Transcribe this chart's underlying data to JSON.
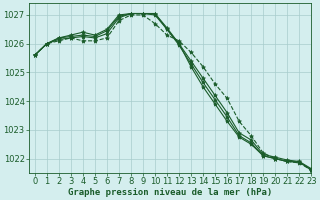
{
  "title": "Graphe pression niveau de la mer (hPa)",
  "background_color": "#d4eeee",
  "grid_color": "#a8cccc",
  "line_color": "#1a5c2a",
  "xlim": [
    -0.5,
    23
  ],
  "ylim": [
    1021.5,
    1027.4
  ],
  "yticks": [
    1022,
    1023,
    1024,
    1025,
    1026,
    1027
  ],
  "xticks": [
    0,
    1,
    2,
    3,
    4,
    5,
    6,
    7,
    8,
    9,
    10,
    11,
    12,
    13,
    14,
    15,
    16,
    17,
    18,
    19,
    20,
    21,
    22,
    23
  ],
  "series": [
    {
      "values": [
        1025.6,
        1026.0,
        1026.1,
        1026.2,
        1026.1,
        1026.1,
        1026.2,
        1026.8,
        1027.0,
        1027.0,
        1026.7,
        1026.3,
        1026.1,
        1025.7,
        1025.2,
        1024.6,
        1024.1,
        1023.3,
        1022.8,
        1022.2,
        1022.0,
        1021.9,
        1021.85,
        1021.6
      ],
      "linestyle": "--",
      "linewidth": 0.8,
      "marker": "*",
      "markersize": 3.0
    },
    {
      "values": [
        1025.6,
        1026.0,
        1026.15,
        1026.2,
        1026.25,
        1026.2,
        1026.35,
        1026.9,
        1027.05,
        1027.05,
        1027.05,
        1026.55,
        1026.0,
        1025.4,
        1024.8,
        1024.2,
        1023.6,
        1022.9,
        1022.65,
        1022.15,
        1022.05,
        1021.95,
        1021.9,
        1021.65
      ],
      "linestyle": "-",
      "linewidth": 0.8,
      "marker": "*",
      "markersize": 3.0
    },
    {
      "values": [
        1025.6,
        1026.0,
        1026.2,
        1026.25,
        1026.3,
        1026.25,
        1026.45,
        1026.95,
        1027.05,
        1027.05,
        1027.05,
        1026.5,
        1025.95,
        1025.3,
        1024.65,
        1024.05,
        1023.45,
        1022.8,
        1022.55,
        1022.1,
        1022.0,
        1021.9,
        1021.88,
        1021.62
      ],
      "linestyle": "-",
      "linewidth": 0.8,
      "marker": "*",
      "markersize": 3.0
    },
    {
      "values": [
        1025.6,
        1026.0,
        1026.2,
        1026.3,
        1026.4,
        1026.3,
        1026.5,
        1027.0,
        1027.05,
        1027.05,
        1027.0,
        1026.5,
        1026.0,
        1025.2,
        1024.5,
        1023.9,
        1023.3,
        1022.75,
        1022.5,
        1022.1,
        1022.0,
        1021.9,
        1021.88,
        1021.6
      ],
      "linestyle": "-",
      "linewidth": 0.8,
      "marker": "*",
      "markersize": 3.0
    }
  ],
  "tick_fontsize": 6,
  "xlabel_fontsize": 6.5,
  "xlabel_fontweight": "bold"
}
